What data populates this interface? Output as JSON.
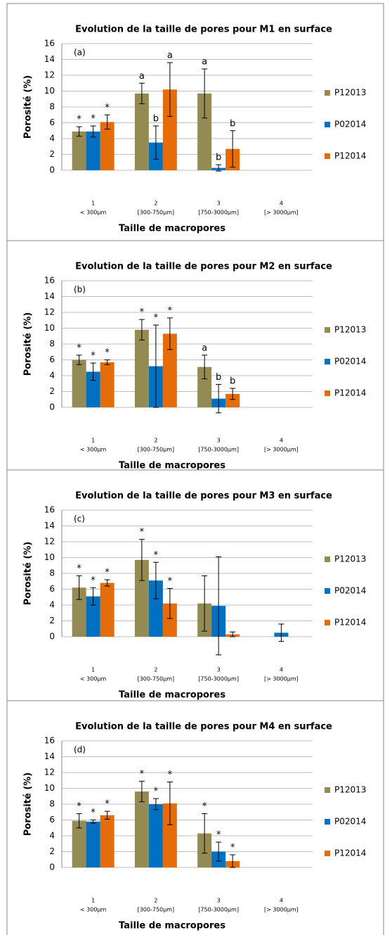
{
  "chart_data": [
    {
      "type": "bar",
      "title": "Evolution de la taille de pores pour M1 en surface",
      "panel_label": "(a)",
      "y_label": "Porosité (%)",
      "x_label": "Taille de macropores",
      "categories": [
        "1",
        "2",
        "3",
        "4"
      ],
      "category_sublabels": [
        "< 300µm",
        "[300-750µm]",
        "[750-3000µm]",
        "[> 3000µm]"
      ],
      "ylim": [
        0,
        16
      ],
      "yticks": [
        0,
        2,
        4,
        6,
        8,
        10,
        12,
        14,
        16
      ],
      "grid": true,
      "series": [
        {
          "name": "P12013",
          "color": "#948a54",
          "values": [
            4.9,
            9.7,
            9.7,
            null
          ],
          "errors": [
            0.6,
            1.3,
            3.1,
            null
          ],
          "markers": [
            "*",
            "a",
            "a",
            null
          ]
        },
        {
          "name": "P02014",
          "color": "#0070c0",
          "values": [
            4.9,
            3.5,
            0.3,
            null
          ],
          "errors": [
            0.7,
            2.1,
            0.4,
            null
          ],
          "markers": [
            "*",
            "b",
            "b",
            null
          ]
        },
        {
          "name": "P12014",
          "color": "#e46c0a",
          "values": [
            6.1,
            10.2,
            2.7,
            null
          ],
          "errors": [
            0.9,
            3.4,
            2.3,
            null
          ],
          "markers": [
            "*",
            "a",
            "b",
            null
          ]
        }
      ]
    },
    {
      "type": "bar",
      "title": "Evolution de la taille de pores pour M2 en surface",
      "panel_label": "(b)",
      "y_label": "Porosité (%)",
      "x_label": "Taille de macropores",
      "categories": [
        "1",
        "2",
        "3",
        "4"
      ],
      "category_sublabels": [
        "< 300µm",
        "[300-750µm]",
        "[750-3000µm]",
        "[> 3000µm]"
      ],
      "ylim": [
        0,
        16
      ],
      "yticks": [
        0,
        2,
        4,
        6,
        8,
        10,
        12,
        14,
        16
      ],
      "grid": true,
      "series": [
        {
          "name": "P12013",
          "color": "#948a54",
          "values": [
            6.0,
            9.8,
            5.1,
            null
          ],
          "errors": [
            0.6,
            1.3,
            1.5,
            null
          ],
          "markers": [
            "*",
            "*",
            "a",
            null
          ]
        },
        {
          "name": "P02014",
          "color": "#0070c0",
          "values": [
            4.5,
            5.2,
            1.1,
            null
          ],
          "errors": [
            1.1,
            5.2,
            1.8,
            null
          ],
          "markers": [
            "*",
            "*",
            "b",
            null
          ]
        },
        {
          "name": "P12014",
          "color": "#e46c0a",
          "values": [
            5.7,
            9.3,
            1.7,
            null
          ],
          "errors": [
            0.3,
            2.0,
            0.7,
            null
          ],
          "markers": [
            "*",
            "*",
            "b",
            null
          ]
        }
      ]
    },
    {
      "type": "bar",
      "title": "Evolution de la taille de pores pour M3 en surface",
      "panel_label": "(c)",
      "y_label": "Porosité (%)",
      "x_label": "Taille de macropores",
      "categories": [
        "1",
        "2",
        "3",
        "4"
      ],
      "category_sublabels": [
        "< 300µm",
        "[300-750µm]",
        "[750-3000µm]",
        "[> 3000µm]"
      ],
      "ylim": [
        0,
        16
      ],
      "yticks": [
        0,
        2,
        4,
        6,
        8,
        10,
        12,
        14,
        16
      ],
      "grid": true,
      "series": [
        {
          "name": "P12013",
          "color": "#948a54",
          "values": [
            6.2,
            9.7,
            4.2,
            null
          ],
          "errors": [
            1.5,
            2.6,
            3.5,
            null
          ],
          "markers": [
            "*",
            "*",
            null,
            null
          ]
        },
        {
          "name": "P02014",
          "color": "#0070c0",
          "values": [
            5.1,
            7.1,
            3.9,
            0.5
          ],
          "errors": [
            1.1,
            2.3,
            6.2,
            1.1
          ],
          "markers": [
            "*",
            "*",
            null,
            null
          ]
        },
        {
          "name": "P12014",
          "color": "#e46c0a",
          "values": [
            6.8,
            4.2,
            0.3,
            null
          ],
          "errors": [
            0.4,
            1.9,
            0.3,
            null
          ],
          "markers": [
            "*",
            "*",
            null,
            null
          ]
        }
      ]
    },
    {
      "type": "bar",
      "title": "Evolution de la taille de pores pour M4 en surface",
      "panel_label": "(d)",
      "y_label": "Porosité (%)",
      "x_label": "Taille de macropores",
      "categories": [
        "1",
        "2",
        "3",
        "4"
      ],
      "category_sublabels": [
        "< 300µm",
        "[300-750µm]",
        "[750-3000µm]",
        "[> 3000µm]"
      ],
      "ylim": [
        0,
        16
      ],
      "yticks": [
        0,
        2,
        4,
        6,
        8,
        10,
        12,
        14,
        16
      ],
      "grid": true,
      "series": [
        {
          "name": "P12013",
          "color": "#948a54",
          "values": [
            5.9,
            9.6,
            4.3,
            null
          ],
          "errors": [
            0.9,
            1.3,
            2.5,
            null
          ],
          "markers": [
            "*",
            "*",
            "*",
            null
          ]
        },
        {
          "name": "P02014",
          "color": "#0070c0",
          "values": [
            5.8,
            8.0,
            2.0,
            null
          ],
          "errors": [
            0.2,
            0.7,
            1.2,
            null
          ],
          "markers": [
            "*",
            "*",
            "*",
            null
          ]
        },
        {
          "name": "P12014",
          "color": "#e46c0a",
          "values": [
            6.6,
            8.1,
            0.8,
            null
          ],
          "errors": [
            0.5,
            2.7,
            0.8,
            null
          ],
          "markers": [
            "*",
            "*",
            "*",
            null
          ]
        }
      ]
    }
  ]
}
